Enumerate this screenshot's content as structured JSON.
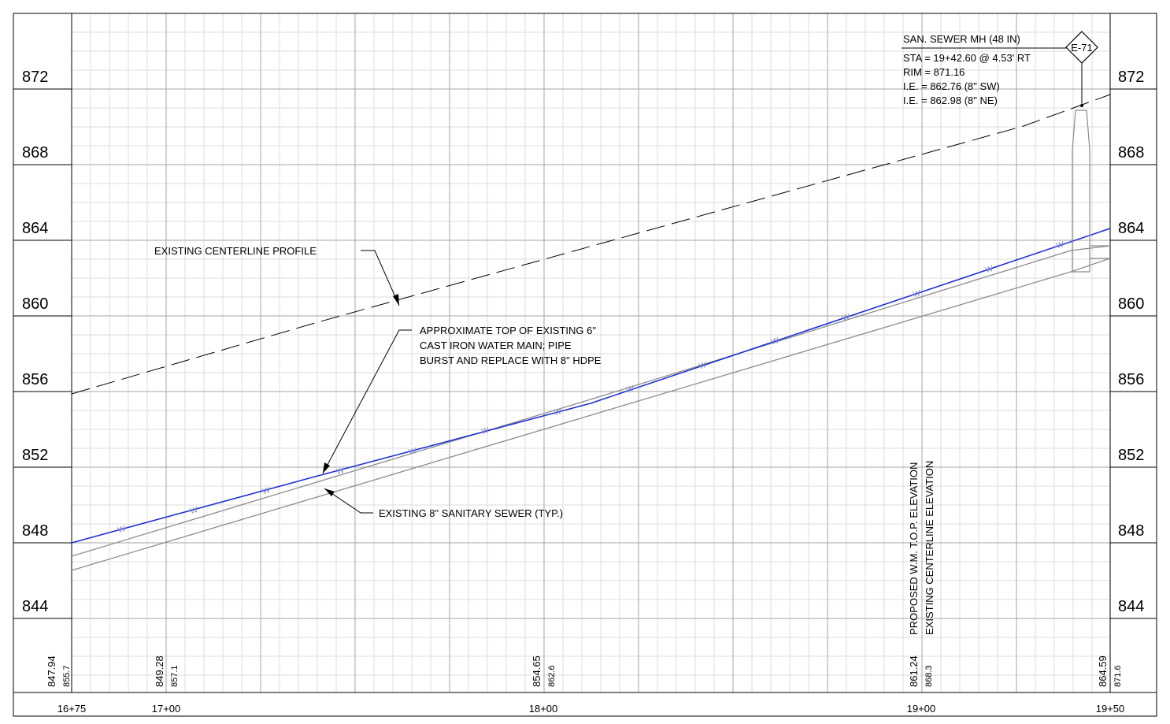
{
  "profile": {
    "elevations": [
      "872",
      "868",
      "864",
      "860",
      "856",
      "852",
      "848",
      "844"
    ],
    "stations": [
      "16+75",
      "17+00",
      "18+00",
      "19+00",
      "19+50"
    ],
    "rows": [
      {
        "main": "847.94",
        "sub": "855.7"
      },
      {
        "main": "849.28",
        "sub": "857.1"
      },
      {
        "main": "854.65",
        "sub": "862.6"
      },
      {
        "main": "861.24",
        "sub": "868.3"
      },
      {
        "main": "864.59",
        "sub": "871.6"
      }
    ],
    "row_labels": {
      "proposed": "PROPOSED W.M. T.O.P. ELEVATION",
      "existing": "EXISTING CENTERLINE ELEVATION"
    }
  },
  "manhole": {
    "tag": "E-71",
    "lines": [
      "SAN. SEWER MH (48 IN)",
      "STA = 19+42.60 @ 4.53' RT",
      "RIM = 871.16",
      "I.E. = 862.76 (8\" SW)",
      "I.E. = 862.98 (8\" NE)"
    ]
  },
  "notes": {
    "centerline": "EXISTING CENTERLINE PROFILE",
    "water_main": [
      "APPROXIMATE TOP OF EXISTING 6\"",
      "CAST IRON WATER MAIN; PIPE",
      "BURST AND REPLACE WITH 8\" HDPE"
    ],
    "sewer": "EXISTING 8\" SANITARY SEWER (TYP.)"
  },
  "pipe_marker": "W",
  "colors": {
    "water_main": "#1f2fd6",
    "sewer": "#8c8c8c",
    "grid_major": "#a6a6a6",
    "grid_minor": "#dcdcdc",
    "ink": "#000000"
  }
}
